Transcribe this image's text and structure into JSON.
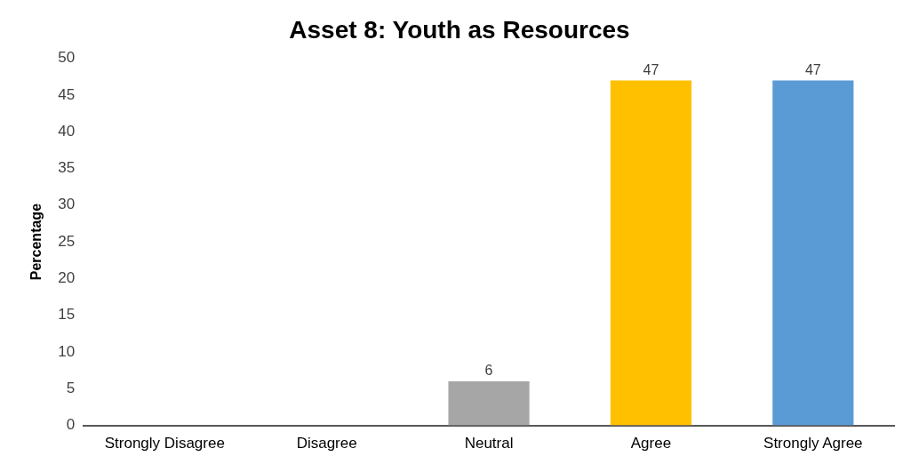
{
  "chart_data": {
    "type": "bar",
    "title": "Asset 8: Youth as Resources",
    "ylabel": "Percentage",
    "categories": [
      "Strongly Disagree",
      "Disagree",
      "Neutral",
      "Agree",
      "Strongly Agree"
    ],
    "values": [
      null,
      null,
      6,
      47,
      47
    ],
    "colors": [
      "#a6a6a6",
      "#a6a6a6",
      "#a6a6a6",
      "#ffc000",
      "#5b9bd5"
    ],
    "value_labels": [
      null,
      null,
      "6",
      "47",
      "47"
    ],
    "ylim": [
      0,
      50
    ],
    "yticks": [
      0,
      5,
      10,
      15,
      20,
      25,
      30,
      35,
      40,
      45,
      50
    ],
    "grid": false,
    "legend": false
  }
}
